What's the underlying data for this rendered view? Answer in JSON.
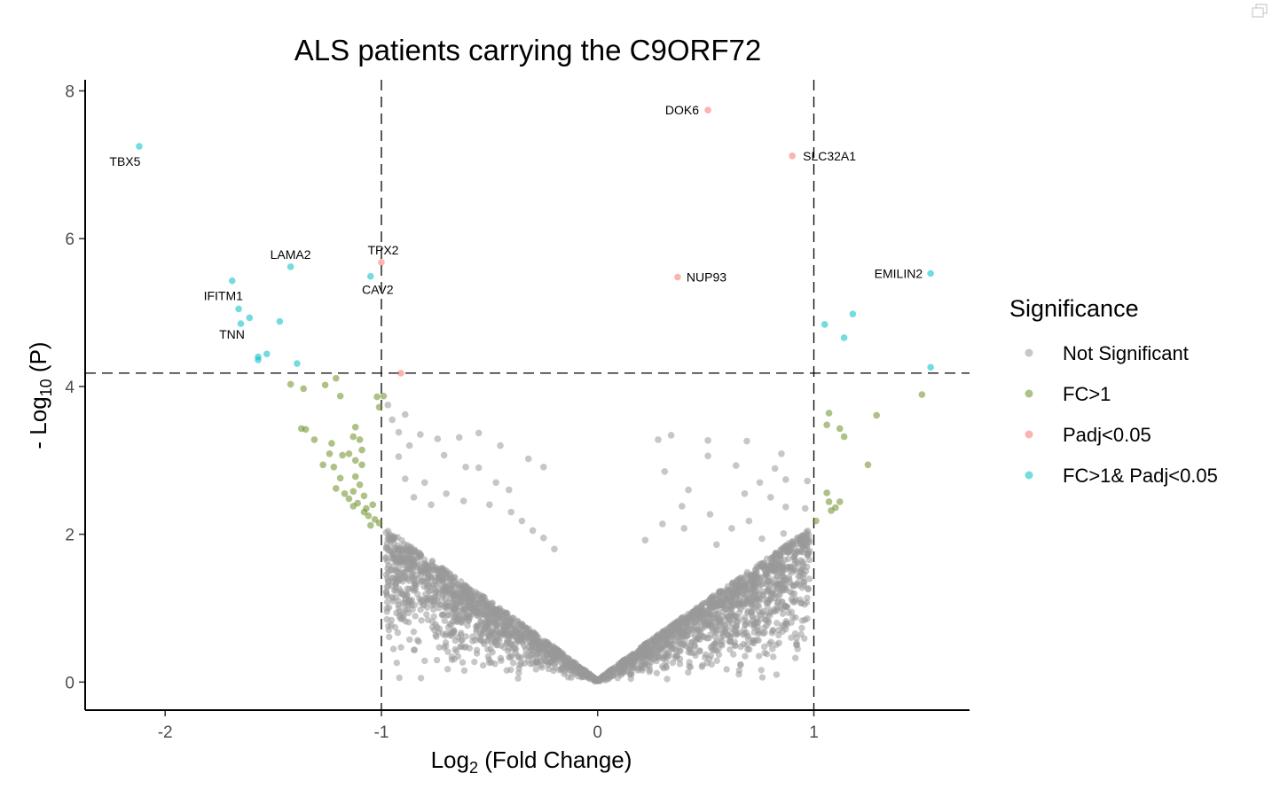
{
  "chart_data": {
    "type": "scatter",
    "title": "ALS patients carrying the C9ORF72",
    "xlabel": {
      "prefix": "Log",
      "sub": "2",
      "suffix": " (Fold Change)"
    },
    "ylabel": {
      "prefix": "- Log",
      "sub": "10",
      "suffix": " (P)"
    },
    "xlim": [
      -2.37,
      1.72
    ],
    "ylim": [
      -0.38,
      8.15
    ],
    "x_ticks": [
      -2,
      -1,
      0,
      1
    ],
    "x_tick_labels": [
      "-2",
      "-1",
      "0",
      "1"
    ],
    "y_ticks": [
      0,
      2,
      4,
      6,
      8
    ],
    "y_tick_labels": [
      "0",
      "2",
      "4",
      "6",
      "8"
    ],
    "thresholds": {
      "x": [
        -1,
        1
      ],
      "y": 4.18
    },
    "grid": false,
    "legend": {
      "title": "Significance",
      "placement": "right",
      "items": [
        {
          "label": "Not Significant",
          "color": "#999999"
        },
        {
          "label": "FC>1",
          "color": "#6b8e23"
        },
        {
          "label": "Padj<0.05",
          "color": "#f8766d"
        },
        {
          "label": "FC>1& Padj<0.05",
          "color": "#00bfc4"
        }
      ]
    },
    "series": [
      {
        "name": "FC>1& Padj<0.05",
        "color": "#00bfc4",
        "points": [
          [
            -2.12,
            7.25
          ],
          [
            -1.69,
            5.43
          ],
          [
            -1.66,
            5.05
          ],
          [
            -1.61,
            4.93
          ],
          [
            -1.65,
            4.85
          ],
          [
            -1.47,
            4.88
          ],
          [
            -1.57,
            4.4
          ],
          [
            -1.57,
            4.36
          ],
          [
            -1.53,
            4.44
          ],
          [
            -1.39,
            4.31
          ],
          [
            -1.42,
            5.62
          ],
          [
            -1.05,
            5.49
          ],
          [
            1.05,
            4.84
          ],
          [
            1.18,
            4.98
          ],
          [
            1.14,
            4.66
          ],
          [
            1.54,
            5.53
          ],
          [
            1.54,
            4.26
          ]
        ]
      },
      {
        "name": "Padj<0.05",
        "color": "#f8766d",
        "points": [
          [
            0.51,
            7.74
          ],
          [
            0.9,
            7.12
          ],
          [
            0.37,
            5.48
          ],
          [
            -1.0,
            5.68
          ],
          [
            -0.91,
            4.18
          ]
        ]
      },
      {
        "name": "FC>1",
        "color": "#6b8e23",
        "points": [
          [
            -1.42,
            4.03
          ],
          [
            -1.36,
            3.97
          ],
          [
            -1.26,
            4.02
          ],
          [
            -1.21,
            4.11
          ],
          [
            -1.19,
            3.87
          ],
          [
            -1.02,
            3.86
          ],
          [
            -0.99,
            3.87
          ],
          [
            -1.01,
            3.72
          ],
          [
            -1.37,
            3.43
          ],
          [
            -1.35,
            3.42
          ],
          [
            -1.31,
            3.28
          ],
          [
            -1.23,
            3.23
          ],
          [
            -1.12,
            3.45
          ],
          [
            -1.13,
            3.32
          ],
          [
            -1.1,
            3.28
          ],
          [
            -1.24,
            3.09
          ],
          [
            -1.18,
            3.07
          ],
          [
            -1.15,
            3.09
          ],
          [
            -1.09,
            3.14
          ],
          [
            -1.12,
            3.0
          ],
          [
            -1.27,
            2.94
          ],
          [
            -1.22,
            2.91
          ],
          [
            -1.19,
            2.76
          ],
          [
            -1.12,
            2.78
          ],
          [
            -1.09,
            2.94
          ],
          [
            -1.21,
            2.62
          ],
          [
            -1.17,
            2.55
          ],
          [
            -1.13,
            2.58
          ],
          [
            -1.1,
            2.67
          ],
          [
            -1.08,
            2.52
          ],
          [
            -1.15,
            2.48
          ],
          [
            -1.11,
            2.42
          ],
          [
            -1.07,
            2.35
          ],
          [
            -1.04,
            2.4
          ],
          [
            -1.06,
            2.25
          ],
          [
            -1.03,
            2.2
          ],
          [
            -1.01,
            2.15
          ],
          [
            -1.05,
            2.12
          ],
          [
            -1.08,
            2.3
          ],
          [
            -1.13,
            2.38
          ],
          [
            1.07,
            3.64
          ],
          [
            1.06,
            3.48
          ],
          [
            1.12,
            3.43
          ],
          [
            1.14,
            3.32
          ],
          [
            1.29,
            3.61
          ],
          [
            1.25,
            2.94
          ],
          [
            1.5,
            3.89
          ],
          [
            1.06,
            2.56
          ],
          [
            1.07,
            2.44
          ],
          [
            1.1,
            2.36
          ],
          [
            1.12,
            2.44
          ],
          [
            1.08,
            2.32
          ],
          [
            1.01,
            2.18
          ]
        ]
      },
      {
        "name": "Not Significant",
        "color": "#999999",
        "points": [
          [
            -0.97,
            3.75
          ],
          [
            -0.95,
            3.55
          ],
          [
            -0.89,
            3.62
          ],
          [
            -0.92,
            3.38
          ],
          [
            -0.87,
            3.2
          ],
          [
            -0.82,
            3.35
          ],
          [
            -0.74,
            3.29
          ],
          [
            -0.64,
            3.31
          ],
          [
            -0.55,
            3.37
          ],
          [
            -0.45,
            3.2
          ],
          [
            -0.32,
            3.02
          ],
          [
            -0.25,
            2.91
          ],
          [
            -0.71,
            3.07
          ],
          [
            -0.61,
            2.91
          ],
          [
            -0.55,
            2.9
          ],
          [
            -0.47,
            2.7
          ],
          [
            -0.41,
            2.6
          ],
          [
            -0.92,
            3.05
          ],
          [
            -0.89,
            2.75
          ],
          [
            -0.8,
            2.7
          ],
          [
            -0.85,
            2.5
          ],
          [
            -0.77,
            2.4
          ],
          [
            -0.7,
            2.55
          ],
          [
            -0.62,
            2.45
          ],
          [
            -0.5,
            2.4
          ],
          [
            -0.4,
            2.3
          ],
          [
            -0.35,
            2.18
          ],
          [
            -0.3,
            2.05
          ],
          [
            -0.25,
            1.95
          ],
          [
            -0.2,
            1.8
          ],
          [
            0.28,
            3.28
          ],
          [
            0.34,
            3.34
          ],
          [
            0.51,
            3.27
          ],
          [
            0.51,
            3.06
          ],
          [
            0.69,
            3.26
          ],
          [
            0.85,
            3.09
          ],
          [
            0.64,
            2.93
          ],
          [
            0.82,
            2.89
          ],
          [
            0.31,
            2.85
          ],
          [
            0.42,
            2.6
          ],
          [
            0.75,
            2.7
          ],
          [
            0.87,
            2.74
          ],
          [
            0.97,
            2.72
          ],
          [
            0.68,
            2.55
          ],
          [
            0.8,
            2.5
          ],
          [
            0.87,
            2.37
          ],
          [
            0.96,
            2.35
          ],
          [
            0.39,
            2.38
          ],
          [
            0.52,
            2.27
          ],
          [
            0.7,
            2.18
          ],
          [
            0.62,
            2.08
          ],
          [
            0.3,
            2.14
          ],
          [
            0.4,
            2.08
          ],
          [
            0.86,
            2.01
          ],
          [
            0.9,
            1.9
          ],
          [
            0.22,
            1.92
          ],
          [
            0.55,
            1.86
          ],
          [
            0.76,
            1.94
          ]
        ]
      }
    ],
    "annotations": [
      {
        "text": "TBX5",
        "x": -2.12,
        "y": 7.25
      },
      {
        "text": "LAMA2",
        "x": -1.42,
        "y": 5.62
      },
      {
        "text": "IFITM1",
        "x": -1.69,
        "y": 5.43
      },
      {
        "text": "TNN",
        "x": -1.65,
        "y": 4.85
      },
      {
        "text": "TPX2",
        "x": -1.0,
        "y": 5.68
      },
      {
        "text": "CAV2",
        "x": -1.05,
        "y": 5.49
      },
      {
        "text": "DOK6",
        "x": 0.51,
        "y": 7.74
      },
      {
        "text": "SLC32A1",
        "x": 0.9,
        "y": 7.12
      },
      {
        "text": "NUP93",
        "x": 0.37,
        "y": 5.48
      },
      {
        "text": "EMILIN2",
        "x": 1.54,
        "y": 5.53
      }
    ]
  }
}
